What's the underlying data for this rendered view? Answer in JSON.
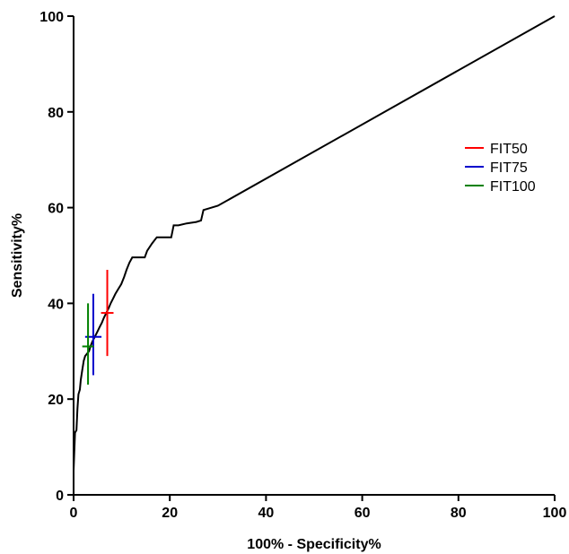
{
  "chart_data": {
    "type": "line",
    "xlabel": "100% - Specificity%",
    "ylabel": "Sensitivity%",
    "xlim": [
      0,
      100
    ],
    "ylim": [
      0,
      100
    ],
    "xticks": [
      0,
      20,
      40,
      60,
      80,
      100
    ],
    "yticks": [
      0,
      20,
      40,
      60,
      80,
      100
    ],
    "grid": false,
    "legend_position": "right",
    "roc_curve": {
      "color": "#000000",
      "points": [
        [
          0,
          5
        ],
        [
          0.3,
          13
        ],
        [
          0.6,
          13.5
        ],
        [
          0.8,
          18
        ],
        [
          1.0,
          21
        ],
        [
          1.3,
          22
        ],
        [
          1.5,
          24
        ],
        [
          1.8,
          26
        ],
        [
          2.1,
          28
        ],
        [
          2.4,
          29
        ],
        [
          2.8,
          29.5
        ],
        [
          3.2,
          30
        ],
        [
          3.5,
          31
        ],
        [
          3.9,
          32
        ],
        [
          4.4,
          33
        ],
        [
          4.9,
          34
        ],
        [
          5.4,
          35
        ],
        [
          5.9,
          36
        ],
        [
          6.3,
          37
        ],
        [
          6.8,
          38
        ],
        [
          7.3,
          39
        ],
        [
          7.7,
          40
        ],
        [
          8.2,
          41
        ],
        [
          8.7,
          42
        ],
        [
          9.3,
          43
        ],
        [
          9.9,
          44
        ],
        [
          10.5,
          45.5
        ],
        [
          11.0,
          47
        ],
        [
          11.6,
          48.5
        ],
        [
          12.2,
          49.6
        ],
        [
          14.8,
          49.6
        ],
        [
          15.3,
          51
        ],
        [
          16.3,
          52.5
        ],
        [
          17.3,
          53.8
        ],
        [
          20.3,
          53.8
        ],
        [
          20.8,
          56.3
        ],
        [
          21.8,
          56.3
        ],
        [
          23.5,
          56.7
        ],
        [
          25.5,
          57.0
        ],
        [
          26.5,
          57.3
        ],
        [
          27.0,
          59.5
        ],
        [
          28.0,
          59.8
        ],
        [
          30.0,
          60.4
        ],
        [
          100,
          100
        ]
      ]
    },
    "series": [
      {
        "name": "FIT50",
        "color": "#ff0000",
        "x": 7.0,
        "y": 38,
        "x_err": 1.3,
        "y_err": [
          29,
          47
        ]
      },
      {
        "name": "FIT75",
        "color": "#0000cc",
        "x": 4.1,
        "y": 33,
        "x_err": 1.7,
        "y_err": [
          25,
          42
        ]
      },
      {
        "name": "FIT100",
        "color": "#008000",
        "x": 3.0,
        "y": 31,
        "x_err": 1.2,
        "y_err": [
          23,
          40
        ]
      }
    ]
  }
}
